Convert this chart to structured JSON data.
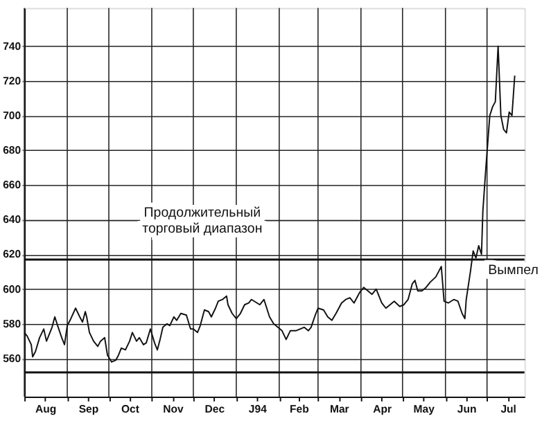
{
  "chart_data": {
    "type": "line",
    "x": [
      "1993-08-01",
      "1993-08-03",
      "1993-08-06",
      "1993-08-07",
      "1993-08-09",
      "1993-08-12",
      "1993-08-15",
      "1993-08-17",
      "1993-08-19",
      "1993-08-21",
      "1993-08-23",
      "1993-08-25",
      "1993-08-28",
      "1993-08-30",
      "1993-09-01",
      "1993-09-03",
      "1993-09-07",
      "1993-09-10",
      "1993-09-12",
      "1993-09-14",
      "1993-09-15",
      "1993-09-17",
      "1993-09-20",
      "1993-09-23",
      "1993-09-25",
      "1993-09-28",
      "1993-09-30",
      "1993-10-03",
      "1993-10-06",
      "1993-10-08",
      "1993-10-10",
      "1993-10-13",
      "1993-10-16",
      "1993-10-18",
      "1993-10-21",
      "1993-10-23",
      "1993-10-26",
      "1993-10-28",
      "1993-10-31",
      "1993-11-03",
      "1993-11-05",
      "1993-11-07",
      "1993-11-09",
      "1993-11-12",
      "1993-11-14",
      "1993-11-17",
      "1993-11-19",
      "1993-11-22",
      "1993-11-26",
      "1993-11-29",
      "1993-12-01",
      "1993-12-04",
      "1993-12-06",
      "1993-12-09",
      "1993-12-12",
      "1993-12-14",
      "1993-12-17",
      "1993-12-19",
      "1993-12-22",
      "1993-12-25",
      "1993-12-26",
      "1993-12-29",
      "1994-01-01",
      "1994-01-04",
      "1994-01-07",
      "1994-01-10",
      "1994-01-12",
      "1994-01-16",
      "1994-01-18",
      "1994-01-21",
      "1994-01-25",
      "1994-01-28",
      "1994-01-31",
      "1994-02-03",
      "1994-02-06",
      "1994-02-09",
      "1994-02-13",
      "1994-02-16",
      "1994-02-19",
      "1994-02-22",
      "1994-02-24",
      "1994-02-27",
      "1994-03-01",
      "1994-03-05",
      "1994-03-08",
      "1994-03-11",
      "1994-03-14",
      "1994-03-18",
      "1994-03-21",
      "1994-03-24",
      "1994-03-27",
      "1994-03-31",
      "1994-04-03",
      "1994-04-06",
      "1994-04-09",
      "1994-04-12",
      "1994-04-16",
      "1994-04-19",
      "1994-04-22",
      "1994-04-25",
      "1994-04-29",
      "1994-05-02",
      "1994-05-05",
      "1994-05-08",
      "1994-05-10",
      "1994-05-12",
      "1994-05-15",
      "1994-05-18",
      "1994-05-21",
      "1994-05-25",
      "1994-05-27",
      "1994-05-29",
      "1994-05-31",
      "1994-06-03",
      "1994-06-07",
      "1994-06-10",
      "1994-06-13",
      "1994-06-15",
      "1994-06-16",
      "1994-06-19",
      "1994-06-21",
      "1994-06-23",
      "1994-06-25",
      "1994-06-27",
      "1994-06-28",
      "1994-06-30",
      "1994-07-03",
      "1994-07-05",
      "1994-07-07",
      "1994-07-09",
      "1994-07-11",
      "1994-07-13",
      "1994-07-15",
      "1994-07-17",
      "1994-07-19",
      "1994-07-21"
    ],
    "series": [
      {
        "color": "#111111",
        "values": [
          575,
          573,
          568,
          561,
          564,
          572,
          577,
          570,
          574,
          578,
          584,
          579,
          572,
          568,
          579,
          582,
          589,
          584,
          581,
          587,
          584,
          575,
          570,
          567,
          570,
          572,
          562,
          558,
          559,
          562,
          566,
          565,
          570,
          575,
          570,
          572,
          568,
          569,
          577,
          569,
          565,
          571,
          578,
          580,
          579,
          584,
          582,
          586,
          585,
          577,
          577,
          575,
          579,
          588,
          587,
          584,
          589,
          593,
          594,
          596,
          591,
          586,
          583,
          586,
          591,
          592,
          594,
          592,
          591,
          594,
          584,
          580,
          578,
          576,
          571,
          576,
          576,
          577,
          578,
          576,
          578,
          585,
          589,
          588,
          584,
          582,
          586,
          592,
          594,
          595,
          592,
          598,
          601,
          599,
          597,
          600,
          592,
          589,
          591,
          593,
          590,
          591,
          594,
          603,
          605,
          599,
          599,
          601,
          604,
          607,
          610,
          613,
          593,
          592,
          594,
          593,
          586,
          583,
          594,
          610,
          622,
          618,
          625,
          620,
          645,
          668,
          700,
          705,
          708,
          740,
          700,
          692,
          690,
          702,
          700,
          723
        ]
      }
    ],
    "xlim": [
      "1993-08-01",
      "1994-07-28"
    ],
    "xticks": [
      {
        "value": "1993-08-01",
        "label": null
      },
      {
        "value": "1993-08-16",
        "label": "Aug"
      },
      {
        "value": "1993-09-01",
        "label": null
      },
      {
        "value": "1993-09-16",
        "label": "Sep"
      },
      {
        "value": "1993-10-01",
        "label": null
      },
      {
        "value": "1993-10-16",
        "label": "Oct"
      },
      {
        "value": "1993-11-01",
        "label": null
      },
      {
        "value": "1993-11-16",
        "label": "Nov"
      },
      {
        "value": "1993-12-01",
        "label": null
      },
      {
        "value": "1993-12-16",
        "label": "Dec"
      },
      {
        "value": "1994-01-01",
        "label": null
      },
      {
        "value": "1994-01-16",
        "label": "J94"
      },
      {
        "value": "1994-02-01",
        "label": null
      },
      {
        "value": "1994-02-15",
        "label": "Feb"
      },
      {
        "value": "1994-03-01",
        "label": null
      },
      {
        "value": "1994-03-16",
        "label": "Mar"
      },
      {
        "value": "1994-04-01",
        "label": null
      },
      {
        "value": "1994-04-16",
        "label": "Apr"
      },
      {
        "value": "1994-05-01",
        "label": null
      },
      {
        "value": "1994-05-16",
        "label": "May"
      },
      {
        "value": "1994-06-01",
        "label": null
      },
      {
        "value": "1994-06-16",
        "label": "Jun"
      },
      {
        "value": "1994-07-01",
        "label": null
      },
      {
        "value": "1994-07-16",
        "label": "Jul"
      }
    ],
    "ylim": [
      538,
      762
    ],
    "yticks": [
      560,
      580,
      600,
      620,
      640,
      660,
      680,
      700,
      720,
      740
    ],
    "grid": true,
    "line_style": "solid",
    "ref_lines": [
      {
        "axis": "y",
        "value": 617,
        "color": "#111111"
      },
      {
        "axis": "y",
        "value": 552,
        "color": "#111111"
      }
    ],
    "annotations": [
      {
        "text": "Продолжительный торговый диапазон",
        "x": "1993-12-25",
        "y": 617
      },
      {
        "text": "Вымпел",
        "x": "1994-06-24",
        "y": 622
      }
    ]
  }
}
